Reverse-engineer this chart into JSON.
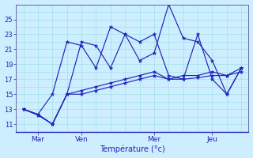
{
  "title": "Température (°c)",
  "background_color": "#cceeff",
  "grid_color": "#99dddd",
  "line_color": "#2222bb",
  "ylim": [
    10,
    27
  ],
  "yticks": [
    11,
    13,
    15,
    17,
    19,
    21,
    23,
    25
  ],
  "x_day_labels": [
    "Mar",
    "Ven",
    "Mer",
    "Jeu"
  ],
  "series": [
    [
      13.0,
      12.3,
      15.0,
      22.0,
      21.5,
      18.5,
      24.0,
      23.0,
      19.5,
      20.5,
      27.0,
      22.5,
      22.0,
      19.5,
      15.0,
      18.5
    ],
    [
      13.0,
      12.3,
      11.0,
      15.0,
      22.0,
      21.5,
      18.5,
      23.0,
      22.0,
      23.0,
      17.5,
      17.0,
      23.0,
      17.0,
      15.0,
      18.5
    ],
    [
      13.0,
      12.3,
      11.0,
      15.0,
      15.5,
      16.0,
      16.5,
      17.0,
      17.5,
      18.0,
      17.0,
      17.5,
      17.5,
      18.0,
      17.5,
      18.5
    ],
    [
      13.0,
      12.2,
      11.0,
      15.0,
      15.0,
      15.5,
      16.0,
      16.5,
      17.0,
      17.5,
      17.0,
      17.0,
      17.2,
      17.5,
      17.5,
      18.0
    ]
  ],
  "n_points": 16,
  "figsize": [
    3.2,
    2.0
  ],
  "dpi": 100
}
